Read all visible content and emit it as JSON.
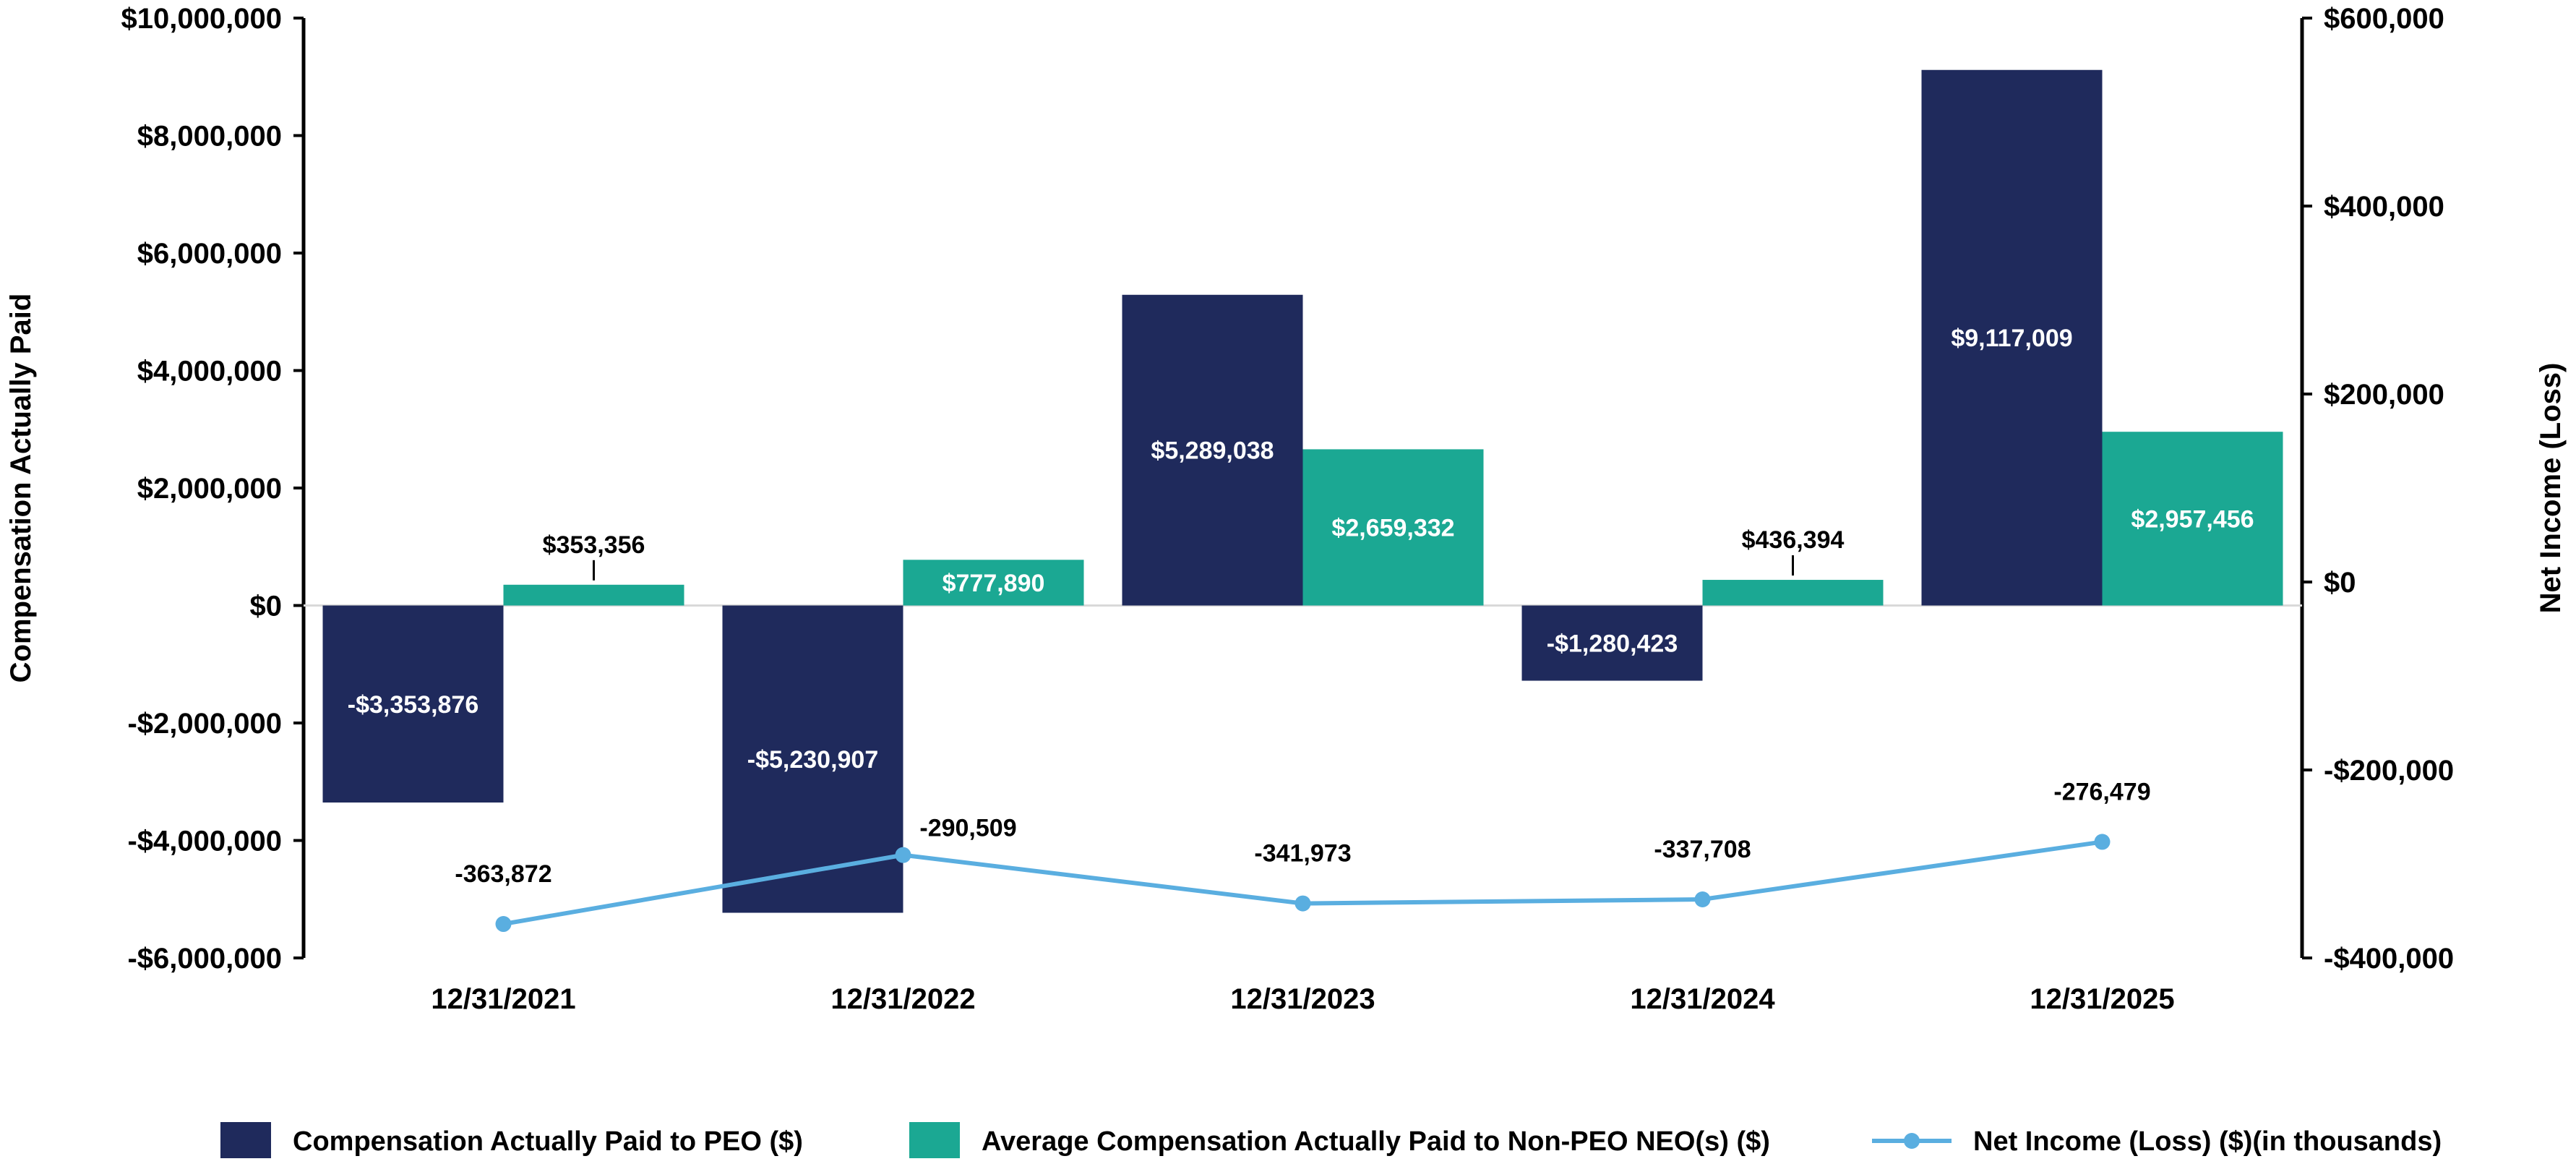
{
  "chart_data": {
    "type": "bar",
    "title": "",
    "categories": [
      "12/31/2021",
      "12/31/2022",
      "12/31/2023",
      "12/31/2024",
      "12/31/2025"
    ],
    "series": [
      {
        "name": "Compensation Actually Paid to PEO ($)",
        "kind": "bar",
        "axis": "left",
        "color": "#1f2a5c",
        "values": [
          -3353876,
          -5230907,
          5289038,
          -1280423,
          9117009
        ],
        "labels": [
          "-$3,353,876",
          "-$5,230,907",
          "$5,289,038",
          "-$1,280,423",
          "$9,117,009"
        ]
      },
      {
        "name": "Average Compensation Actually Paid to Non-PEO NEO(s) ($)",
        "kind": "bar",
        "axis": "left",
        "color": "#1ba893",
        "values": [
          353356,
          777890,
          2659332,
          436394,
          2957456
        ],
        "labels": [
          "$353,356",
          "$777,890",
          "$2,659,332",
          "$436,394",
          "$2,957,456"
        ]
      },
      {
        "name": "Net Income (Loss) ($)(in thousands)",
        "kind": "line",
        "axis": "right",
        "color": "#5aaee0",
        "values": [
          -363872,
          -290509,
          -341973,
          -337708,
          -276479
        ],
        "labels": [
          "-363,872",
          "-290,509",
          "-341,973",
          "-337,708",
          "-276,479"
        ]
      }
    ],
    "y_left": {
      "label": "Compensation Actually Paid",
      "range": [
        -6000000,
        10000000
      ],
      "ticks": [
        10000000,
        8000000,
        6000000,
        4000000,
        2000000,
        0,
        -2000000,
        -4000000,
        -6000000
      ],
      "tick_labels": [
        "$10,000,000",
        "$8,000,000",
        "$6,000,000",
        "$4,000,000",
        "$2,000,000",
        "$0",
        "-$2,000,000",
        "-$4,000,000",
        "-$6,000,000"
      ]
    },
    "y_right": {
      "label": "Net Income (Loss)",
      "range": [
        -400000,
        600000
      ],
      "ticks": [
        600000,
        400000,
        200000,
        0,
        -200000,
        -400000
      ],
      "tick_labels": [
        "$600,000",
        "$400,000",
        "$200,000",
        "$0",
        "-$200,000",
        "-$400,000"
      ]
    },
    "grid": false,
    "legend_position": "bottom"
  }
}
